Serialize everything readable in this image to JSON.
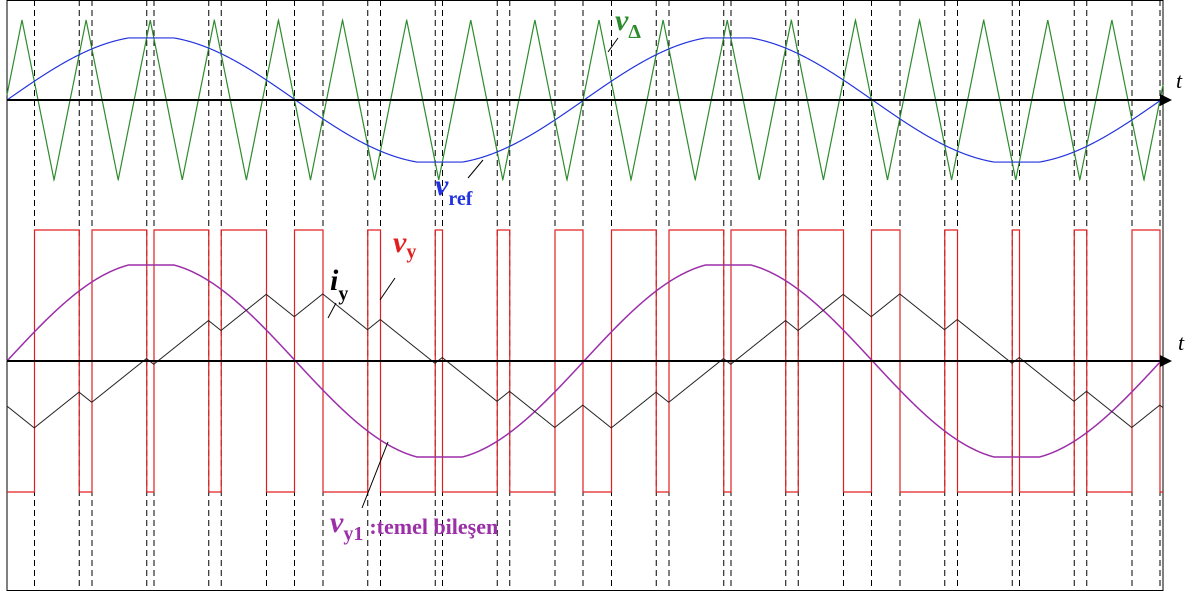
{
  "axes": [
    {
      "label": "t"
    },
    {
      "label": "t"
    }
  ],
  "signals": [
    {
      "symbol": "v",
      "subscript": "Δ"
    },
    {
      "symbol": "v",
      "subscript": "ref"
    },
    {
      "symbol": "v",
      "subscript": "y"
    },
    {
      "symbol": "i",
      "subscript": "y"
    },
    {
      "symbol": "v",
      "subscript": "y1",
      "note": ":temel bileşen"
    }
  ]
}
